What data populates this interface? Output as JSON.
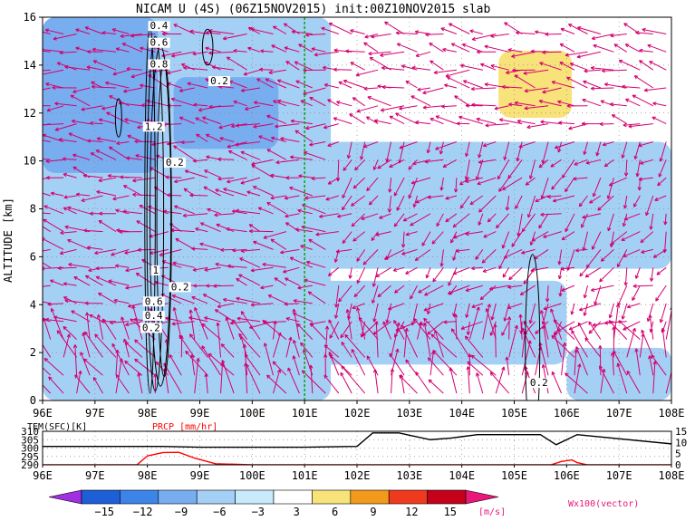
{
  "chart_data": [
    {
      "type": "heatmap",
      "title": "NICAM U (4S) (06Z15NOV2015) init:00Z10NOV2015 slab",
      "ylabel": "ALTITUDE [km]",
      "xlim": [
        96,
        108
      ],
      "ylim": [
        0,
        16
      ],
      "x_ticks": [
        "96E",
        "97E",
        "98E",
        "99E",
        "100E",
        "101E",
        "102E",
        "103E",
        "104E",
        "105E",
        "106E",
        "107E",
        "108E"
      ],
      "y_ticks": [
        "0",
        "2",
        "4",
        "6",
        "8",
        "10",
        "12",
        "14",
        "16"
      ],
      "grid": true,
      "reference_line_x": 101,
      "contour_labels": [
        "0.4",
        "0.6",
        "0.8",
        "0.2",
        "1.2",
        "0.2",
        "1",
        "0.2",
        "0.6",
        "0.4",
        "0.2",
        "0.2"
      ],
      "vector_color": "#d4006f",
      "shaded_regions": [
        {
          "level": "-6",
          "x": [
            96,
            101.5
          ],
          "y": [
            0,
            16
          ]
        },
        {
          "level": "-9",
          "x": [
            96,
            98.2
          ],
          "y": [
            9.5,
            16
          ]
        },
        {
          "level": "-9",
          "x": [
            98.5,
            100.5
          ],
          "y": [
            10.5,
            13.5
          ]
        },
        {
          "level": "-6",
          "x": [
            101,
            108
          ],
          "y": [
            5.5,
            10.8
          ]
        },
        {
          "level": "-6",
          "x": [
            100,
            106
          ],
          "y": [
            1.5,
            5
          ]
        },
        {
          "level": "-6",
          "x": [
            106,
            108
          ],
          "y": [
            0,
            2.2
          ]
        },
        {
          "level": "3",
          "x": [
            104.7,
            106.1
          ],
          "y": [
            11.8,
            14.6
          ]
        }
      ]
    },
    {
      "type": "line",
      "left_axis_label": "TEM(SFC)[K]",
      "right_axis_label": "PRCP [mm/hr]",
      "left_ticks": [
        "290",
        "295",
        "300",
        "305",
        "310"
      ],
      "right_ticks": [
        "0",
        "5",
        "10",
        "15"
      ],
      "left_ylim": [
        290,
        310
      ],
      "right_ylim": [
        0,
        15
      ],
      "x_ticks": [
        "96E",
        "97E",
        "98E",
        "99E",
        "100E",
        "101E",
        "102E",
        "103E",
        "104E",
        "105E",
        "106E",
        "107E",
        "108E"
      ],
      "series": [
        {
          "name": "TEM(SFC)[K]",
          "color": "#000000",
          "x": [
            96,
            98.3,
            99.0,
            101,
            102.0,
            102.3,
            102.8,
            103.4,
            103.8,
            104.3,
            105.5,
            105.8,
            106.2,
            108
          ],
          "values": [
            301,
            301,
            300.5,
            300.5,
            301,
            309,
            309,
            305,
            306,
            308,
            308,
            302,
            308,
            302.5
          ]
        },
        {
          "name": "PRCP [mm/hr]",
          "color": "#ff0000",
          "x": [
            96,
            97.8,
            98.0,
            98.3,
            98.6,
            98.9,
            99.3,
            100,
            105.7,
            105.9,
            106.1,
            106.2,
            106.4,
            108
          ],
          "values": [
            0,
            0,
            4,
            5.5,
            5.6,
            3,
            0.5,
            0,
            0,
            1.5,
            2.2,
            1.0,
            0,
            0
          ]
        }
      ]
    }
  ],
  "colorbar": {
    "ticks": [
      "−15",
      "−12",
      "−9",
      "−6",
      "−3",
      "3",
      "6",
      "9",
      "12",
      "15"
    ],
    "colors": [
      "#9f2fe0",
      "#1e5fd8",
      "#3c84e8",
      "#78aef0",
      "#a5d0f5",
      "#c8eafa",
      "#ffffff",
      "#f8e27a",
      "#f29a1c",
      "#ee3b1e",
      "#c5001a",
      "#e8177a"
    ],
    "unit": "[m/s]",
    "vector_note": "Wx100(vector)"
  }
}
